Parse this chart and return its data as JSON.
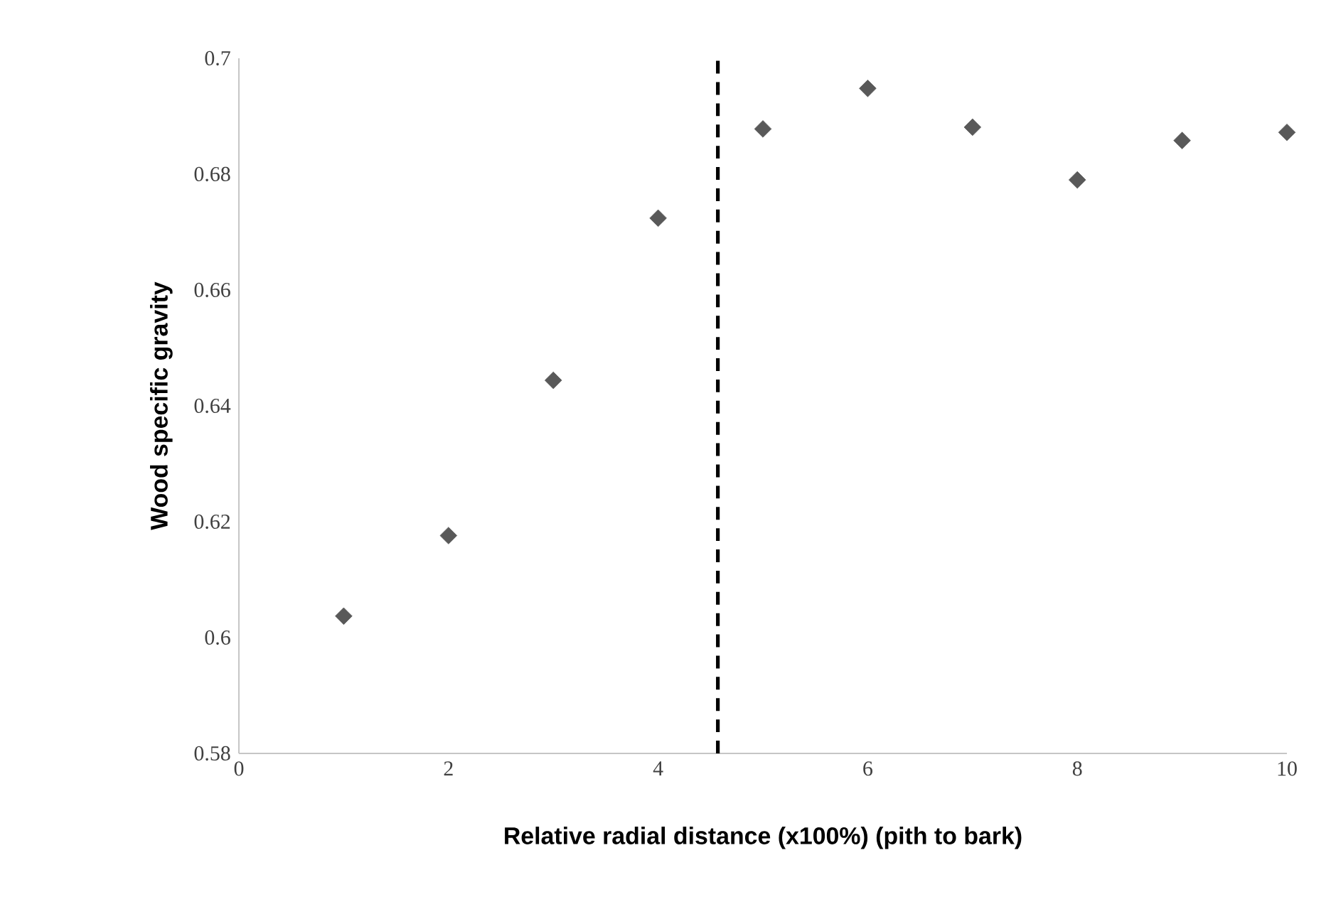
{
  "chart_data": {
    "type": "scatter",
    "xlabel": "Relative radial distance (x100%) (pith to bark)",
    "ylabel": "Wood specific gravity",
    "x": [
      1,
      2,
      3,
      4,
      5,
      6,
      7,
      8,
      9,
      10
    ],
    "series": [
      {
        "color": "#595959",
        "values": [
          0.6037,
          0.6176,
          0.6444,
          0.6724,
          0.6878,
          0.6948,
          0.6881,
          0.679,
          0.6858,
          0.6872
        ]
      }
    ],
    "marker": "diamond",
    "grid": false,
    "xlim": [
      0,
      10
    ],
    "xticks": [
      0,
      2,
      4,
      6,
      8,
      10
    ],
    "ylim": [
      0.58,
      0.7
    ],
    "yticks": [
      0.58,
      0.6,
      0.62,
      0.64,
      0.66,
      0.68,
      0.7
    ],
    "ref_lines": [
      {
        "axis": "x",
        "value": 4.57,
        "color": "#000000",
        "line_style": "dashed"
      }
    ]
  }
}
